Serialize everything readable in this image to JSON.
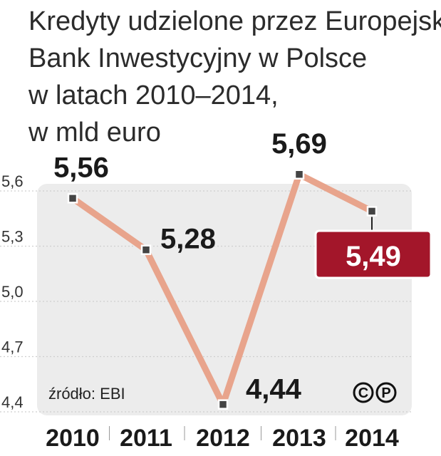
{
  "title_lines": [
    "Kredyty udzielone przez Europejski",
    "Bank Inwestycyjny w Polsce",
    "w latach 2010–2014,",
    "w mld euro"
  ],
  "source": "źródło: EBI",
  "copyright_marks": [
    "C",
    "P"
  ],
  "colors": {
    "line": "#e8a48c",
    "plot_bg": "#ececec",
    "marker_fill": "#444444",
    "highlight_box": "#a3162a"
  },
  "chart_data": {
    "type": "line",
    "title": "Kredyty udzielone przez Europejski Bank Inwestycyjny w Polsce w latach 2010–2014, w mld euro",
    "categories": [
      "2010",
      "2011",
      "2012",
      "2013",
      "2014"
    ],
    "values": [
      5.56,
      5.28,
      4.44,
      5.69,
      5.49
    ],
    "value_labels": [
      "5,56",
      "5,28",
      "4,44",
      "5,69",
      "5,49"
    ],
    "y_ticks": [
      "5,6",
      "5,3",
      "5,0",
      "4,7",
      "4,4"
    ],
    "y_tick_values": [
      5.6,
      5.3,
      5.0,
      4.7,
      4.4
    ],
    "ylim": [
      4.4,
      5.6
    ],
    "grid": true,
    "highlighted_category": "2014"
  }
}
